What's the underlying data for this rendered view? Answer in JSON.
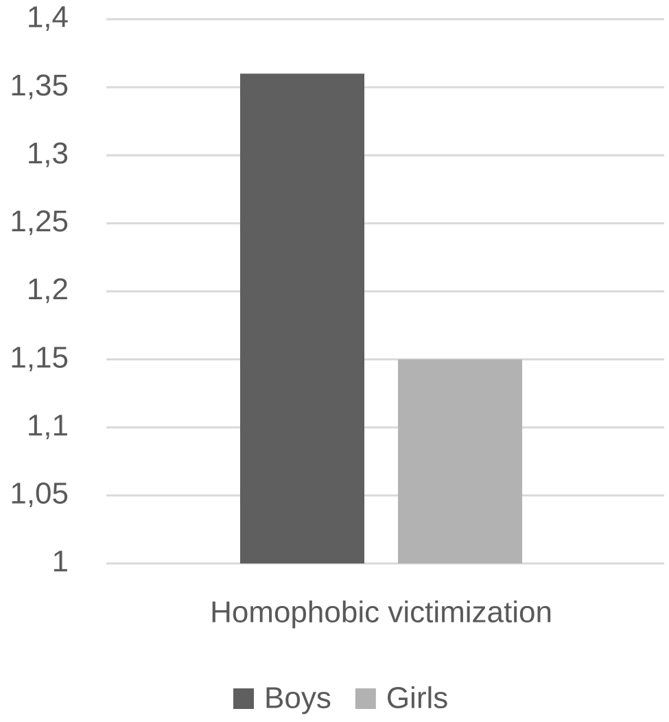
{
  "chart_data": {
    "type": "bar",
    "categories": [
      "Homophobic victimization"
    ],
    "series": [
      {
        "name": "Boys",
        "color": "#5f5f5f",
        "values": [
          1.36
        ]
      },
      {
        "name": "Girls",
        "color": "#b2b2b2",
        "values": [
          1.15
        ]
      }
    ],
    "ylim": [
      1,
      1.4
    ],
    "yticks": [
      1,
      {
        "value": 1.05,
        "label": "1,05"
      },
      {
        "value": 1.1,
        "label": "1,1"
      },
      {
        "value": 1.15,
        "label": "1,15"
      },
      {
        "value": 1.2,
        "label": "1,2"
      },
      {
        "value": 1.25,
        "label": "1,25"
      },
      {
        "value": 1.3,
        "label": "1,3"
      },
      {
        "value": 1.35,
        "label": "1,35"
      },
      {
        "value": 1.4,
        "label": "1,4"
      }
    ],
    "grid": true,
    "legend": "bottom"
  }
}
